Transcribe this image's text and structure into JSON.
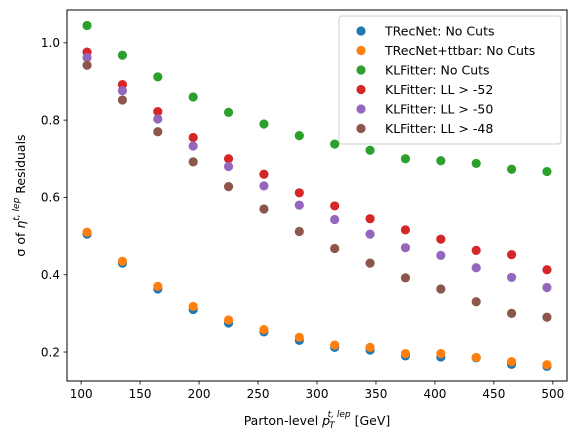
{
  "chart_data": {
    "type": "scatter",
    "xlabel": {
      "text": "Parton-level ",
      "math_base": "p",
      "math_sub": "T",
      "math_sup": "t, lep",
      "unit": " [GeV]"
    },
    "ylabel": {
      "prefix": "σ of ",
      "math_base": "η",
      "math_sup": "t, lep",
      "suffix": " Residuals"
    },
    "xlim": [
      88,
      512
    ],
    "ylim": [
      0.125,
      1.085
    ],
    "xticks": [
      100,
      150,
      200,
      250,
      300,
      350,
      400,
      450,
      500
    ],
    "yticks": [
      0.2,
      0.4,
      0.6,
      0.8,
      1.0
    ],
    "ytick_labels": [
      "0.2",
      "0.4",
      "0.6",
      "0.8",
      "1.0"
    ],
    "legend_position": "top-right",
    "x": [
      105,
      135,
      165,
      195,
      225,
      255,
      285,
      315,
      345,
      375,
      405,
      435,
      465,
      495
    ],
    "series": [
      {
        "name": "TRecNet: No Cuts",
        "color": "#1f77b4",
        "values": [
          0.505,
          0.43,
          0.363,
          0.31,
          0.275,
          0.252,
          0.23,
          0.212,
          0.205,
          0.19,
          0.187,
          0.185,
          0.168,
          0.163
        ]
      },
      {
        "name": "TRecNet+ttbar: No Cuts",
        "color": "#ff7f0e",
        "values": [
          0.51,
          0.435,
          0.37,
          0.318,
          0.283,
          0.258,
          0.238,
          0.218,
          0.212,
          0.196,
          0.196,
          0.186,
          0.175,
          0.167
        ]
      },
      {
        "name": "KLFitter: No Cuts",
        "color": "#2ca02c",
        "values": [
          1.045,
          0.968,
          0.912,
          0.86,
          0.82,
          0.79,
          0.76,
          0.738,
          0.722,
          0.7,
          0.695,
          0.688,
          0.673,
          0.667
        ]
      },
      {
        "name": "KLFitter: LL > -52",
        "color": "#d62728",
        "values": [
          0.976,
          0.892,
          0.822,
          0.755,
          0.7,
          0.66,
          0.612,
          0.578,
          0.545,
          0.516,
          0.492,
          0.463,
          0.452,
          0.413
        ]
      },
      {
        "name": "KLFitter: LL > -50",
        "color": "#9467bd",
        "values": [
          0.962,
          0.876,
          0.803,
          0.733,
          0.68,
          0.63,
          0.58,
          0.543,
          0.505,
          0.47,
          0.45,
          0.418,
          0.393,
          0.367
        ]
      },
      {
        "name": "KLFitter: LL > -48",
        "color": "#8c564b",
        "values": [
          0.942,
          0.852,
          0.77,
          0.692,
          0.628,
          0.57,
          0.512,
          0.468,
          0.43,
          0.392,
          0.363,
          0.33,
          0.3,
          0.29
        ]
      }
    ]
  }
}
